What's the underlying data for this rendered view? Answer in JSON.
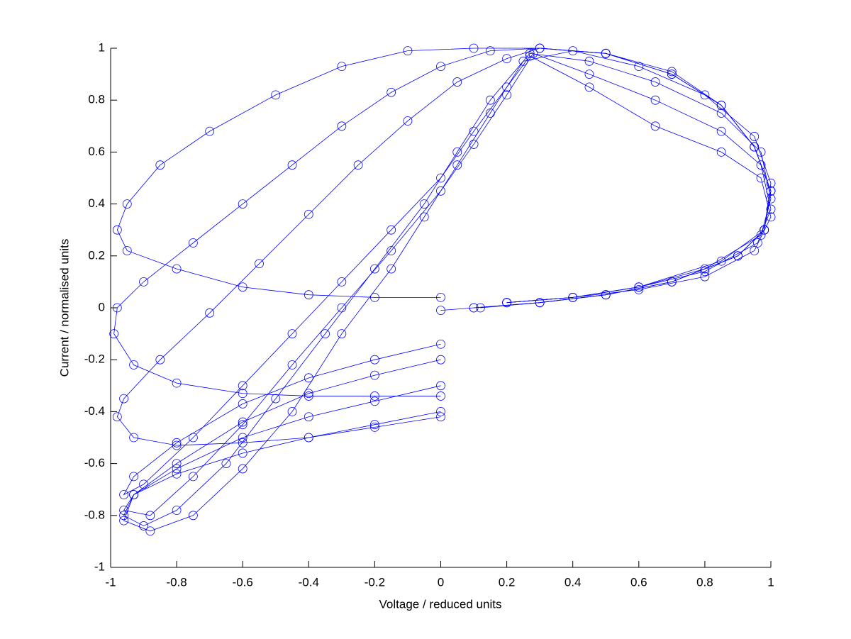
{
  "chart_data": {
    "type": "line",
    "marker": "circle",
    "color": "#0000ff",
    "xlabel": "Voltage / reduced units",
    "ylabel": "Current / normalised units",
    "xlim": [
      -1,
      1
    ],
    "ylim": [
      -1,
      1
    ],
    "xticks": [
      -1,
      -0.8,
      -0.6,
      -0.4,
      -0.2,
      0,
      0.2,
      0.4,
      0.6,
      0.8,
      1
    ],
    "yticks": [
      -1,
      -0.8,
      -0.6,
      -0.4,
      -0.2,
      0,
      0.2,
      0.4,
      0.6,
      0.8,
      1
    ],
    "series": [
      {
        "color": "#0000ff",
        "x": [
          0,
          -0.2,
          -0.4,
          -0.6,
          -0.8,
          -0.95,
          -0.98,
          -0.95,
          -0.85,
          -0.7,
          -0.5,
          -0.3,
          -0.1,
          0.1,
          0.3,
          0.5,
          0.7,
          0.85,
          0.95,
          1.0,
          0.98,
          0.9,
          0.7,
          0.5,
          0.3,
          0.1,
          0
        ],
        "values": [
          0.04,
          0.04,
          0.05,
          0.08,
          0.15,
          0.22,
          0.3,
          0.4,
          0.55,
          0.68,
          0.82,
          0.93,
          0.99,
          1.0,
          1.0,
          0.98,
          0.9,
          0.78,
          0.62,
          0.45,
          0.3,
          0.2,
          0.1,
          0.05,
          0.02,
          0.0,
          -0.01
        ]
      },
      {
        "color": "#0000ff",
        "x": [
          0,
          -0.2,
          -0.4,
          -0.6,
          -0.8,
          -0.93,
          -0.99,
          -0.98,
          -0.9,
          -0.75,
          -0.6,
          -0.45,
          -0.3,
          -0.15,
          0,
          0.15,
          0.3,
          0.5,
          0.7,
          0.85,
          0.95,
          1.0,
          0.98,
          0.9,
          0.7,
          0.5,
          0.3,
          0.1
        ],
        "values": [
          -0.34,
          -0.34,
          -0.34,
          -0.33,
          -0.29,
          -0.22,
          -0.1,
          0.0,
          0.1,
          0.25,
          0.4,
          0.55,
          0.7,
          0.83,
          0.93,
          0.99,
          1.0,
          0.98,
          0.91,
          0.78,
          0.62,
          0.45,
          0.3,
          0.2,
          0.1,
          0.05,
          0.02,
          0.0
        ]
      },
      {
        "color": "#0000ff",
        "x": [
          0,
          -0.2,
          -0.4,
          -0.6,
          -0.8,
          -0.93,
          -0.98,
          -0.96,
          -0.85,
          -0.7,
          -0.55,
          -0.4,
          -0.25,
          -0.1,
          0.05,
          0.2,
          0.3,
          0.5,
          0.7,
          0.85,
          0.95,
          1.0,
          0.98,
          0.9,
          0.7,
          0.5,
          0.3,
          0.12
        ],
        "values": [
          -0.42,
          -0.46,
          -0.5,
          -0.52,
          -0.53,
          -0.5,
          -0.42,
          -0.35,
          -0.2,
          -0.02,
          0.17,
          0.36,
          0.55,
          0.72,
          0.87,
          0.96,
          1.0,
          0.98,
          0.9,
          0.78,
          0.62,
          0.45,
          0.3,
          0.2,
          0.1,
          0.05,
          0.02,
          0.0
        ]
      },
      {
        "color": "#0000ff",
        "x": [
          0,
          -0.2,
          -0.4,
          -0.6,
          -0.8,
          -0.93,
          -0.96,
          -0.9,
          -0.75,
          -0.6,
          -0.45,
          -0.3,
          -0.15,
          0,
          0.1,
          0.2,
          0.27,
          0.45,
          0.65,
          0.85,
          0.97,
          1.0,
          0.95,
          0.8,
          0.6,
          0.4,
          0.2
        ],
        "values": [
          -0.14,
          -0.2,
          -0.27,
          -0.37,
          -0.52,
          -0.65,
          -0.72,
          -0.68,
          -0.5,
          -0.3,
          -0.1,
          0.1,
          0.3,
          0.5,
          0.68,
          0.85,
          0.97,
          0.85,
          0.7,
          0.6,
          0.5,
          0.35,
          0.22,
          0.12,
          0.07,
          0.04,
          0.02
        ]
      },
      {
        "color": "#0000ff",
        "x": [
          0,
          -0.2,
          -0.4,
          -0.6,
          -0.8,
          -0.93,
          -0.96,
          -0.88,
          -0.75,
          -0.6,
          -0.45,
          -0.3,
          -0.15,
          0,
          0.1,
          0.2,
          0.28,
          0.45,
          0.65,
          0.85,
          0.97,
          1.0,
          0.96,
          0.8,
          0.6,
          0.4,
          0.2
        ],
        "values": [
          -0.2,
          -0.26,
          -0.33,
          -0.44,
          -0.6,
          -0.72,
          -0.78,
          -0.8,
          -0.65,
          -0.45,
          -0.22,
          0.0,
          0.22,
          0.45,
          0.63,
          0.82,
          0.98,
          0.9,
          0.8,
          0.68,
          0.55,
          0.38,
          0.25,
          0.14,
          0.08,
          0.04,
          0.02
        ]
      },
      {
        "color": "#0000ff",
        "x": [
          0,
          -0.2,
          -0.4,
          -0.6,
          -0.8,
          -0.93,
          -0.96,
          -0.9,
          -0.8,
          -0.65,
          -0.5,
          -0.35,
          -0.2,
          -0.05,
          0.05,
          0.15,
          0.27,
          0.45,
          0.65,
          0.85,
          0.97,
          1.0,
          0.97,
          0.8,
          0.6,
          0.4,
          0.2
        ],
        "values": [
          -0.3,
          -0.36,
          -0.42,
          -0.5,
          -0.62,
          -0.72,
          -0.8,
          -0.84,
          -0.78,
          -0.6,
          -0.35,
          -0.1,
          0.15,
          0.4,
          0.6,
          0.8,
          0.98,
          0.95,
          0.87,
          0.75,
          0.6,
          0.42,
          0.28,
          0.15,
          0.08,
          0.04,
          0.02
        ]
      },
      {
        "color": "#0000ff",
        "x": [
          0,
          -0.2,
          -0.4,
          -0.6,
          -0.8,
          -0.93,
          -0.96,
          -0.88,
          -0.75,
          -0.6,
          -0.45,
          -0.3,
          -0.15,
          -0.05,
          0.05,
          0.15,
          0.25,
          0.4,
          0.6,
          0.8,
          0.95,
          1.0,
          0.98,
          0.85,
          0.6,
          0.4,
          0.2
        ],
        "values": [
          -0.4,
          -0.45,
          -0.5,
          -0.56,
          -0.64,
          -0.72,
          -0.82,
          -0.86,
          -0.8,
          -0.62,
          -0.4,
          -0.1,
          0.15,
          0.35,
          0.55,
          0.75,
          0.95,
          0.99,
          0.93,
          0.82,
          0.66,
          0.48,
          0.3,
          0.18,
          0.08,
          0.04,
          0.02
        ]
      }
    ]
  }
}
